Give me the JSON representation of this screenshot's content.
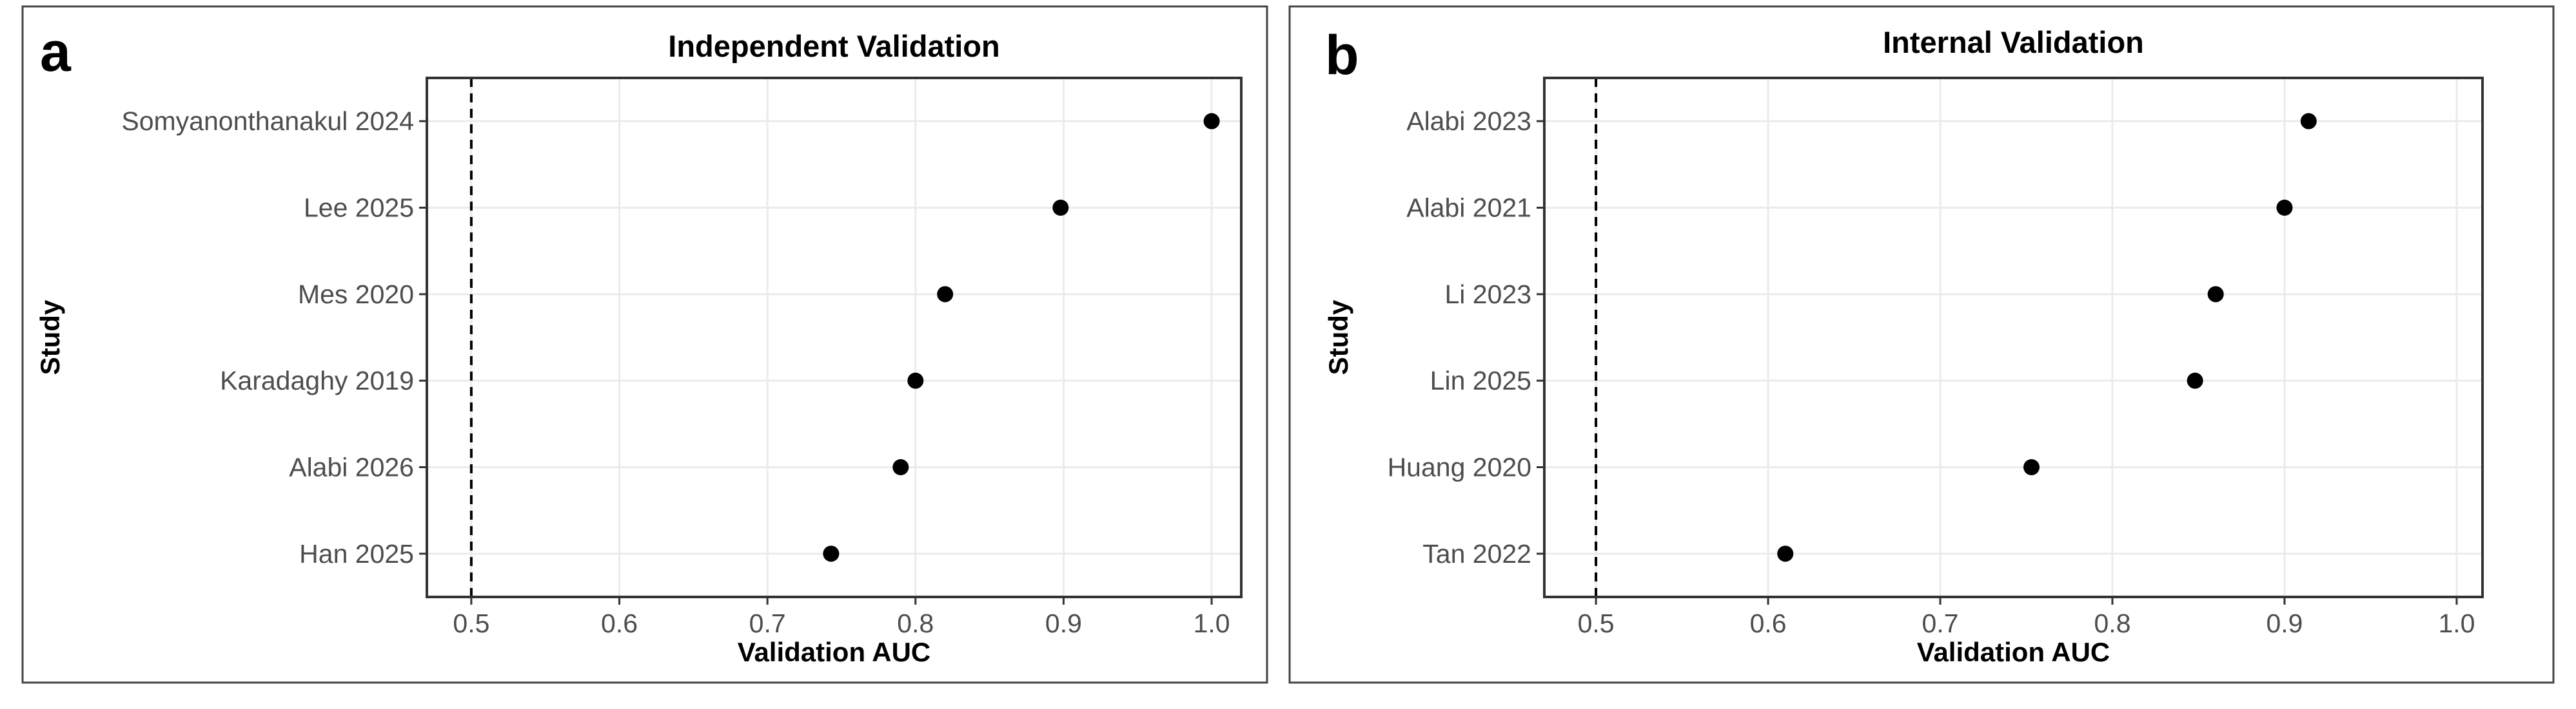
{
  "chart_data": [
    {
      "panel_label": "a",
      "type": "scatter",
      "title": "Independent Validation",
      "xlabel": "Validation AUC",
      "ylabel": "Study",
      "xlim": [
        0.47,
        1.02
      ],
      "xticks": [
        "0.5",
        "0.6",
        "0.7",
        "0.8",
        "0.9",
        "1.0"
      ],
      "reference_line_x": 0.5,
      "grid": true,
      "categories": [
        "Somyanonthanakul 2024",
        "Lee 2025",
        "Mes 2020",
        "Karadaghy 2019",
        "Alabi 2026",
        "Han 2025"
      ],
      "values": [
        1.0,
        0.898,
        0.82,
        0.8,
        0.79,
        0.743
      ]
    },
    {
      "panel_label": "b",
      "type": "scatter",
      "title": "Internal Validation",
      "xlabel": "Validation AUC",
      "ylabel": "Study",
      "xlim": [
        0.47,
        1.015
      ],
      "xticks": [
        "0.5",
        "0.6",
        "0.7",
        "0.8",
        "0.9",
        "1.0"
      ],
      "reference_line_x": 0.5,
      "grid": true,
      "categories": [
        "Alabi 2023",
        "Alabi 2021",
        "Li 2023",
        "Lin 2025",
        "Huang 2020",
        "Tan 2022"
      ],
      "values": [
        0.914,
        0.9,
        0.86,
        0.848,
        0.753,
        0.61
      ]
    }
  ]
}
